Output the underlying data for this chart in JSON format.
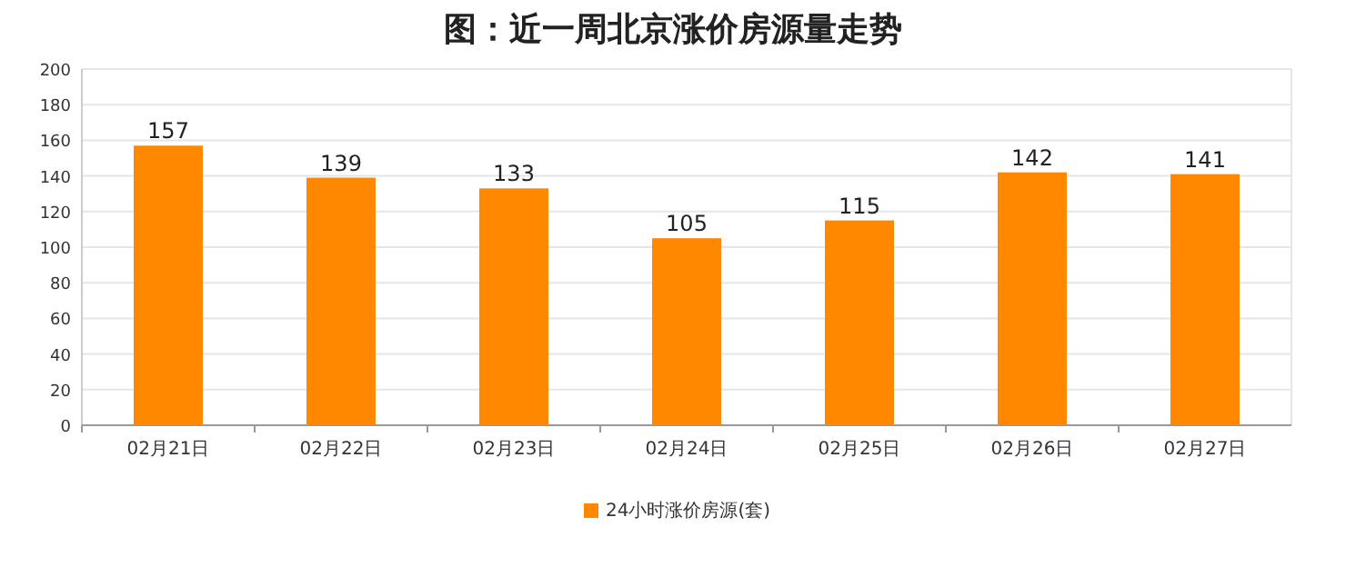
{
  "chart_data": {
    "type": "bar",
    "title": "图：近一周北京涨价房源量走势",
    "categories": [
      "02月21日",
      "02月22日",
      "02月23日",
      "02月24日",
      "02月25日",
      "02月26日",
      "02月27日"
    ],
    "series": [
      {
        "name": "24小时涨价房源(套)",
        "color": "#ff8800",
        "values": [
          157,
          139,
          133,
          105,
          115,
          142,
          141
        ]
      }
    ],
    "ylim": [
      0,
      200
    ],
    "yticks": [
      0,
      20,
      40,
      60,
      80,
      100,
      120,
      140,
      160,
      180,
      200
    ],
    "grid": "y",
    "legend": "bottom",
    "data_labels": true
  }
}
